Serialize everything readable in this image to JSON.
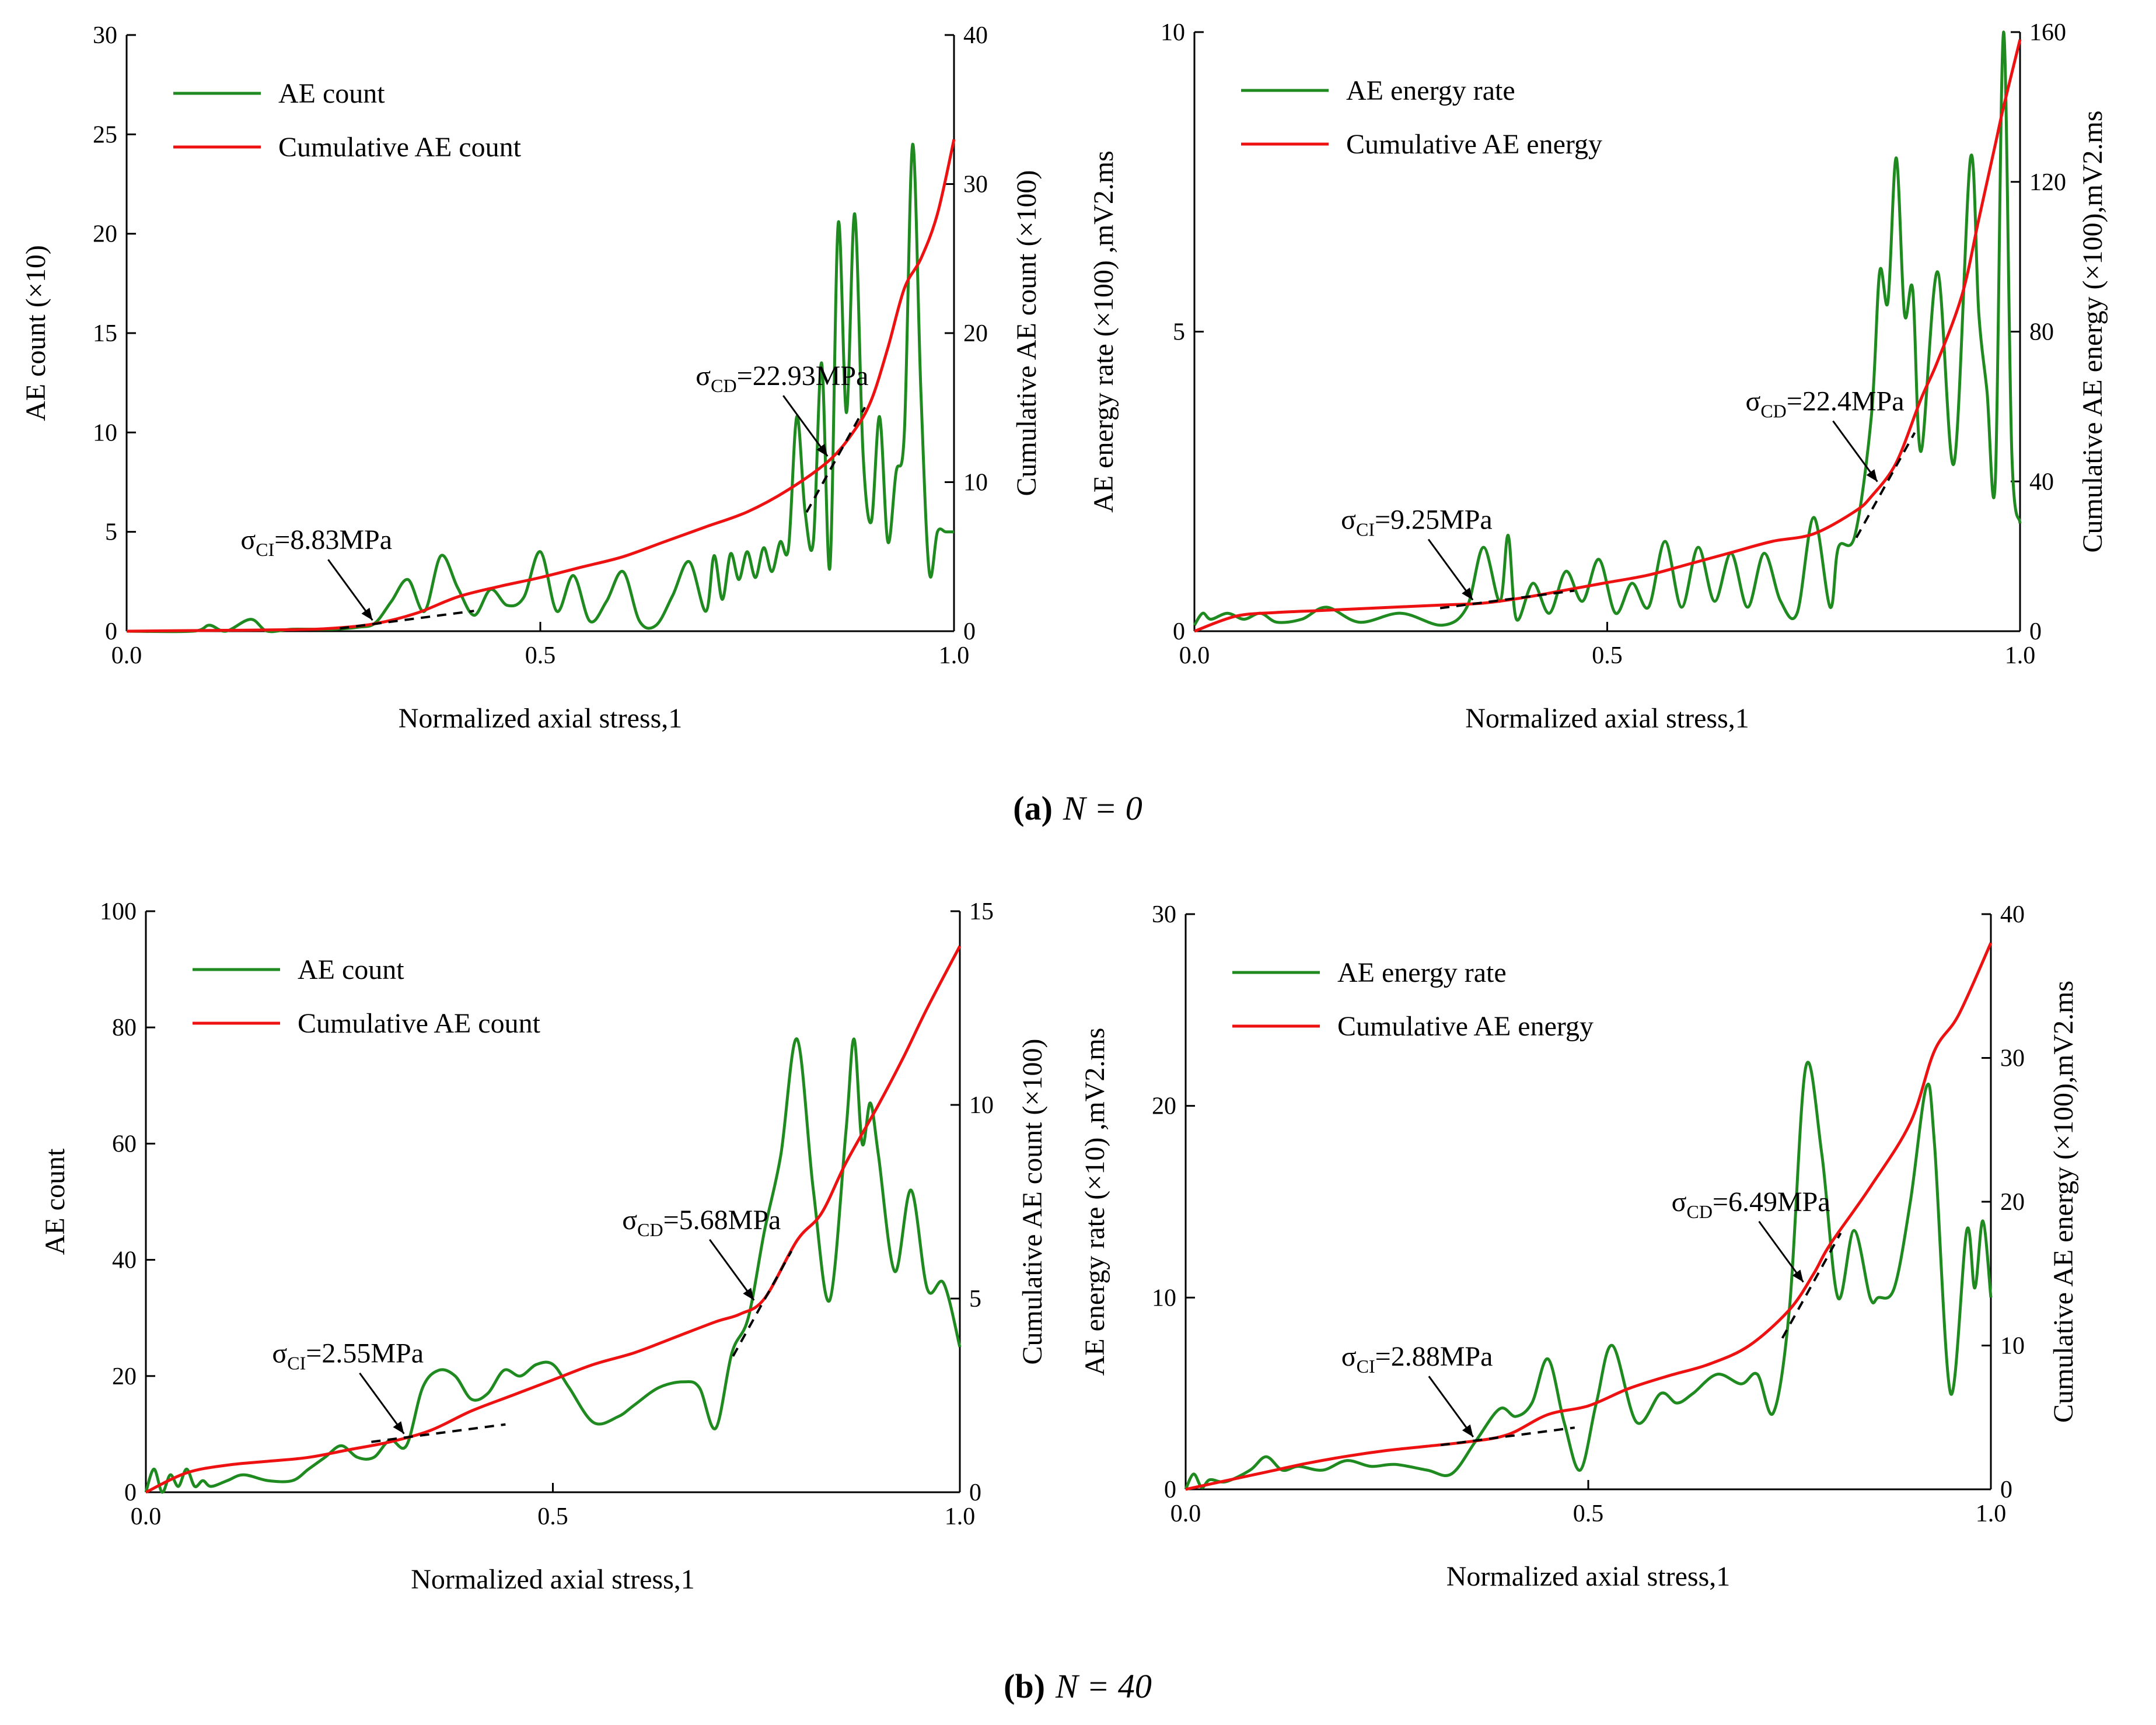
{
  "colors": {
    "green": "#1f8a1f",
    "red": "#ee1111",
    "black": "#000000"
  },
  "captions": {
    "a": {
      "label": "(a)",
      "text": "N = 0"
    },
    "b": {
      "label": "(b)",
      "text": "N = 40"
    }
  },
  "chart_data": [
    {
      "type": "line",
      "panel": "a-left",
      "xlabel": "Normalized axial stress,1",
      "ylabel": "AE count (×10)",
      "y2label": "Cumulative AE count (×100)",
      "xlim": [
        0,
        1
      ],
      "ylim": [
        0,
        30
      ],
      "y2lim": [
        0,
        40
      ],
      "xticks": [
        "0.0",
        "0.5",
        "1.0"
      ],
      "yticks": [
        "0",
        "5",
        "10",
        "15",
        "20",
        "25",
        "30"
      ],
      "y2ticks": [
        "0",
        "10",
        "20",
        "30",
        "40"
      ],
      "legend": [
        "AE count",
        "Cumulative AE count"
      ],
      "series": [
        {
          "name": "AE count",
          "axis": "left",
          "x": [
            0,
            0.08,
            0.1,
            0.12,
            0.15,
            0.17,
            0.2,
            0.25,
            0.28,
            0.3,
            0.32,
            0.34,
            0.36,
            0.38,
            0.4,
            0.42,
            0.44,
            0.46,
            0.48,
            0.5,
            0.52,
            0.54,
            0.56,
            0.58,
            0.6,
            0.62,
            0.64,
            0.66,
            0.68,
            0.7,
            0.71,
            0.72,
            0.73,
            0.74,
            0.75,
            0.76,
            0.77,
            0.78,
            0.79,
            0.8,
            0.81,
            0.82,
            0.83,
            0.84,
            0.85,
            0.86,
            0.87,
            0.88,
            0.89,
            0.9,
            0.91,
            0.92,
            0.93,
            0.94,
            0.95,
            0.96,
            0.97,
            0.98,
            0.99,
            1.0
          ],
          "values": [
            0,
            0,
            0.3,
            0,
            0.6,
            0,
            0.1,
            0.1,
            0.2,
            0.4,
            1.5,
            2.6,
            1,
            3.8,
            2.2,
            0.8,
            2.1,
            1.3,
            1.7,
            4,
            1,
            2.8,
            0.5,
            1.5,
            3,
            0.5,
            0.3,
            1.8,
            3.5,
            1,
            3.8,
            1.6,
            3.9,
            2.6,
            4,
            2.7,
            4.2,
            3,
            4.5,
            4.2,
            10.8,
            6,
            4.5,
            13.5,
            3.2,
            20.5,
            11,
            21,
            9,
            5.5,
            10.8,
            4.5,
            8,
            10,
            24.5,
            12,
            3,
            5,
            5,
            5
          ]
        },
        {
          "name": "Cumulative AE count",
          "axis": "right",
          "x": [
            0,
            0.1,
            0.2,
            0.25,
            0.3,
            0.35,
            0.4,
            0.45,
            0.5,
            0.55,
            0.6,
            0.65,
            0.7,
            0.75,
            0.8,
            0.85,
            0.88,
            0.9,
            0.92,
            0.94,
            0.96,
            0.98,
            1.0
          ],
          "values": [
            0,
            0.05,
            0.1,
            0.2,
            0.5,
            1.2,
            2.3,
            3,
            3.6,
            4.3,
            5,
            6,
            7,
            8,
            9.5,
            11.5,
            13.5,
            15.5,
            19,
            23,
            25,
            28,
            33
          ]
        }
      ],
      "annotations": [
        {
          "label": "σCI",
          "sub": "CI",
          "value": "=8.83MPa",
          "x": 0.3
        },
        {
          "label": "σCD",
          "sub": "CD",
          "value": "=22.93MPa",
          "x": 0.85
        }
      ]
    },
    {
      "type": "line",
      "panel": "a-right",
      "xlabel": "Normalized axial stress,1",
      "ylabel": "AE energy rate (×100) ,mV2.ms",
      "y2label": "Cumulative AE energy (×100),mV2.ms",
      "xlim": [
        0,
        1
      ],
      "ylim": [
        0,
        10
      ],
      "y2lim": [
        0,
        160
      ],
      "xticks": [
        "0.0",
        "0.5",
        "1.0"
      ],
      "yticks": [
        "0",
        "5",
        "10"
      ],
      "y2ticks": [
        "0",
        "40",
        "80",
        "120",
        "160"
      ],
      "legend": [
        "AE energy rate",
        "Cumulative AE energy"
      ],
      "series": [
        {
          "name": "AE energy rate",
          "axis": "left",
          "x": [
            0,
            0.01,
            0.02,
            0.04,
            0.06,
            0.08,
            0.1,
            0.13,
            0.16,
            0.2,
            0.25,
            0.3,
            0.33,
            0.35,
            0.37,
            0.38,
            0.39,
            0.41,
            0.43,
            0.45,
            0.47,
            0.49,
            0.51,
            0.53,
            0.55,
            0.57,
            0.59,
            0.61,
            0.63,
            0.65,
            0.67,
            0.69,
            0.71,
            0.73,
            0.75,
            0.77,
            0.78,
            0.8,
            0.82,
            0.83,
            0.84,
            0.85,
            0.86,
            0.87,
            0.88,
            0.9,
            0.92,
            0.94,
            0.95,
            0.96,
            0.97,
            0.98,
            0.99,
            1.0
          ],
          "values": [
            0.1,
            0.3,
            0.2,
            0.3,
            0.2,
            0.3,
            0.15,
            0.2,
            0.4,
            0.15,
            0.3,
            0.1,
            0.4,
            1.4,
            0.5,
            1.6,
            0.2,
            0.8,
            0.3,
            1,
            0.5,
            1.2,
            0.3,
            0.8,
            0.4,
            1.5,
            0.4,
            1.4,
            0.5,
            1.3,
            0.4,
            1.3,
            0.5,
            0.3,
            1.9,
            0.4,
            1.4,
            1.6,
            3.6,
            6,
            5.5,
            7.9,
            5.3,
            5.7,
            3,
            6,
            2.8,
            7.9,
            5.3,
            4,
            2.5,
            10,
            3,
            1.8
          ]
        },
        {
          "name": "Cumulative AE energy",
          "axis": "right",
          "x": [
            0,
            0.05,
            0.1,
            0.15,
            0.2,
            0.25,
            0.3,
            0.35,
            0.4,
            0.45,
            0.5,
            0.55,
            0.6,
            0.65,
            0.7,
            0.75,
            0.8,
            0.82,
            0.85,
            0.88,
            0.9,
            0.93,
            0.95,
            0.97,
            0.98,
            1.0
          ],
          "values": [
            0,
            4,
            5,
            5.5,
            6,
            6.5,
            7,
            7.5,
            9,
            11,
            13,
            15,
            18,
            21,
            24,
            26,
            32,
            36,
            45,
            62,
            72,
            90,
            110,
            130,
            140,
            158
          ]
        }
      ],
      "annotations": [
        {
          "label": "σCI",
          "sub": "CI",
          "value": "=9.25MPa",
          "x": 0.34
        },
        {
          "label": "σCD",
          "sub": "CD",
          "value": "=22.4MPa",
          "x": 0.83
        }
      ]
    },
    {
      "type": "line",
      "panel": "b-left",
      "xlabel": "Normalized axial stress,1",
      "ylabel": "AE count",
      "y2label": "Cumulative AE count (×100)",
      "xlim": [
        0,
        1
      ],
      "ylim": [
        0,
        100
      ],
      "y2lim": [
        0,
        15
      ],
      "xticks": [
        "0.0",
        "0.5",
        "1.0"
      ],
      "yticks": [
        "0",
        "20",
        "40",
        "60",
        "80",
        "100"
      ],
      "y2ticks": [
        "0",
        "5",
        "10",
        "15"
      ],
      "legend": [
        "AE count",
        "Cumulative AE count"
      ],
      "series": [
        {
          "name": "AE count",
          "axis": "left",
          "x": [
            0,
            0.01,
            0.02,
            0.03,
            0.04,
            0.05,
            0.06,
            0.07,
            0.08,
            0.1,
            0.12,
            0.15,
            0.18,
            0.2,
            0.22,
            0.24,
            0.26,
            0.28,
            0.3,
            0.32,
            0.34,
            0.36,
            0.38,
            0.4,
            0.42,
            0.44,
            0.46,
            0.48,
            0.5,
            0.52,
            0.55,
            0.58,
            0.6,
            0.63,
            0.66,
            0.68,
            0.7,
            0.72,
            0.74,
            0.76,
            0.78,
            0.8,
            0.82,
            0.84,
            0.86,
            0.87,
            0.88,
            0.89,
            0.9,
            0.92,
            0.94,
            0.96,
            0.98,
            1.0
          ],
          "values": [
            0,
            4,
            0,
            3,
            1,
            4,
            1,
            2,
            1,
            2,
            3,
            2,
            2,
            4,
            6,
            8,
            6,
            6,
            9,
            8,
            18,
            21,
            20,
            16,
            17,
            21,
            20,
            22,
            22,
            18,
            12,
            13,
            15,
            18,
            19,
            18,
            11,
            24,
            30,
            45,
            58,
            78,
            52,
            33,
            62,
            78,
            60,
            67,
            58,
            38,
            52,
            35,
            36,
            25
          ]
        },
        {
          "name": "Cumulative AE count",
          "axis": "right",
          "x": [
            0,
            0.05,
            0.1,
            0.15,
            0.2,
            0.25,
            0.3,
            0.35,
            0.4,
            0.45,
            0.5,
            0.55,
            0.6,
            0.65,
            0.7,
            0.73,
            0.76,
            0.8,
            0.83,
            0.86,
            0.9,
            0.93,
            0.96,
            1.0
          ],
          "values": [
            0,
            0.5,
            0.7,
            0.8,
            0.9,
            1.1,
            1.3,
            1.6,
            2.1,
            2.5,
            2.9,
            3.3,
            3.6,
            4,
            4.4,
            4.6,
            5,
            6.5,
            7.2,
            8.5,
            10,
            11.2,
            12.5,
            14.1
          ]
        }
      ],
      "annotations": [
        {
          "label": "σCI",
          "sub": "CI",
          "value": "=2.55MPa",
          "x": 0.32
        },
        {
          "label": "σCD",
          "sub": "CD",
          "value": "=5.68MPa",
          "x": 0.75
        }
      ]
    },
    {
      "type": "line",
      "panel": "b-right",
      "xlabel": "Normalized axial stress,1",
      "ylabel": "AE energy rate (×10) ,mV2.ms",
      "y2label": "Cumulative AE energy (×100),mV2.ms",
      "xlim": [
        0,
        1
      ],
      "ylim": [
        0,
        30
      ],
      "y2lim": [
        0,
        40
      ],
      "xticks": [
        "0.0",
        "0.5",
        "1.0"
      ],
      "yticks": [
        "0",
        "10",
        "20",
        "30"
      ],
      "y2ticks": [
        "0",
        "10",
        "20",
        "30",
        "40"
      ],
      "legend": [
        "AE energy rate",
        "Cumulative AE energy"
      ],
      "series": [
        {
          "name": "AE energy rate",
          "axis": "left",
          "x": [
            0,
            0.01,
            0.02,
            0.03,
            0.05,
            0.08,
            0.1,
            0.12,
            0.14,
            0.17,
            0.2,
            0.23,
            0.26,
            0.3,
            0.33,
            0.36,
            0.39,
            0.41,
            0.43,
            0.45,
            0.47,
            0.49,
            0.51,
            0.53,
            0.56,
            0.59,
            0.61,
            0.63,
            0.66,
            0.69,
            0.71,
            0.73,
            0.75,
            0.77,
            0.79,
            0.81,
            0.83,
            0.85,
            0.86,
            0.88,
            0.9,
            0.92,
            0.93,
            0.95,
            0.97,
            0.98,
            0.99,
            1.0
          ],
          "values": [
            0,
            0.8,
            0.1,
            0.5,
            0.4,
            1,
            1.7,
            1,
            1.2,
            1,
            1.5,
            1.2,
            1.3,
            1,
            0.8,
            2.5,
            4.2,
            3.8,
            4.5,
            6.8,
            3.5,
            1,
            4.5,
            7.5,
            3.5,
            5,
            4.5,
            5,
            6,
            5.5,
            6,
            4,
            9.5,
            22,
            17.5,
            10,
            13.5,
            10,
            10,
            10.5,
            15,
            21,
            18,
            5,
            13.5,
            10.5,
            14,
            10
          ]
        },
        {
          "name": "Cumulative AE energy",
          "axis": "right",
          "x": [
            0,
            0.05,
            0.1,
            0.15,
            0.2,
            0.25,
            0.3,
            0.35,
            0.4,
            0.45,
            0.5,
            0.55,
            0.6,
            0.65,
            0.7,
            0.75,
            0.78,
            0.8,
            0.85,
            0.9,
            0.93,
            0.96,
            1.0
          ],
          "values": [
            0,
            0.6,
            1.2,
            1.8,
            2.3,
            2.7,
            3,
            3.3,
            3.8,
            5.2,
            5.8,
            7,
            7.9,
            8.7,
            10,
            12.5,
            15,
            17,
            21,
            25.5,
            30.5,
            33,
            38
          ]
        }
      ],
      "annotations": [
        {
          "label": "σCI",
          "sub": "CI",
          "value": "=2.88MPa",
          "x": 0.36
        },
        {
          "label": "σCD",
          "sub": "CD",
          "value": "=6.49MPa",
          "x": 0.77
        }
      ]
    }
  ]
}
